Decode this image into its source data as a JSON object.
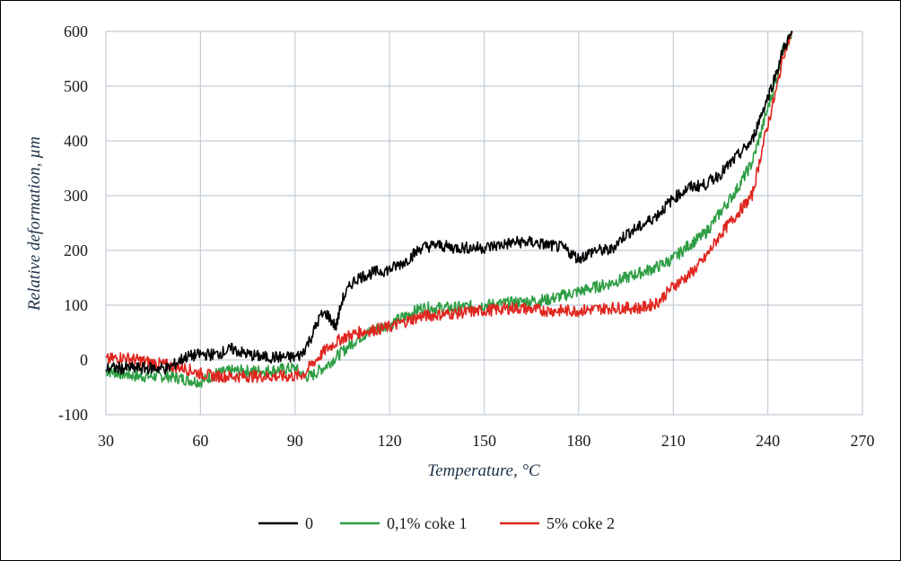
{
  "chart_data": {
    "type": "line",
    "xlabel": "Temperature, °C",
    "ylabel": "Relative deformation, µm",
    "xlim": [
      30,
      270
    ],
    "ylim": [
      -100,
      600
    ],
    "x_ticks": [
      30,
      60,
      90,
      120,
      150,
      180,
      210,
      240,
      270
    ],
    "y_ticks": [
      -100,
      0,
      100,
      200,
      300,
      400,
      500,
      600
    ],
    "grid": true,
    "legend_position": "bottom",
    "series": [
      {
        "name": "0",
        "color": "#000000",
        "x": [
          30,
          40,
          50,
          55,
          60,
          65,
          70,
          75,
          80,
          85,
          90,
          92,
          95,
          98,
          100,
          103,
          105,
          108,
          110,
          115,
          120,
          125,
          130,
          135,
          140,
          150,
          160,
          165,
          170,
          175,
          180,
          185,
          190,
          195,
          200,
          205,
          210,
          215,
          220,
          225,
          230,
          235,
          238,
          240,
          243,
          245,
          248
        ],
        "y": [
          -15,
          -15,
          -15,
          5,
          10,
          10,
          20,
          10,
          5,
          5,
          5,
          10,
          40,
          80,
          85,
          60,
          110,
          140,
          150,
          160,
          165,
          180,
          205,
          210,
          205,
          205,
          215,
          215,
          210,
          205,
          185,
          200,
          200,
          230,
          245,
          265,
          295,
          315,
          320,
          340,
          370,
          400,
          450,
          480,
          530,
          570,
          600
        ]
      },
      {
        "name": "0,1% coke 1",
        "color": "#2e9e44",
        "x": [
          30,
          40,
          50,
          55,
          60,
          65,
          70,
          80,
          90,
          93,
          95,
          100,
          105,
          110,
          115,
          120,
          125,
          130,
          140,
          150,
          160,
          170,
          180,
          190,
          200,
          205,
          210,
          215,
          220,
          225,
          230,
          235,
          238,
          240,
          243,
          245,
          248
        ],
        "y": [
          -20,
          -30,
          -30,
          -35,
          -40,
          -25,
          -20,
          -20,
          -15,
          -30,
          -30,
          -10,
          15,
          40,
          55,
          65,
          80,
          95,
          95,
          100,
          105,
          110,
          125,
          140,
          160,
          170,
          185,
          210,
          230,
          270,
          310,
          360,
          420,
          460,
          520,
          570,
          600
        ]
      },
      {
        "name": "5% coke 2",
        "color": "#e0261f",
        "x": [
          30,
          35,
          40,
          50,
          55,
          60,
          65,
          70,
          80,
          90,
          93,
          95,
          100,
          105,
          110,
          115,
          120,
          125,
          130,
          140,
          150,
          160,
          170,
          180,
          190,
          200,
          205,
          210,
          215,
          220,
          225,
          230,
          235,
          238,
          240,
          243,
          245,
          248
        ],
        "y": [
          0,
          5,
          0,
          -10,
          -15,
          -25,
          -30,
          -30,
          -30,
          -30,
          -25,
          -10,
          20,
          40,
          50,
          55,
          60,
          70,
          80,
          85,
          90,
          95,
          90,
          90,
          95,
          95,
          105,
          135,
          155,
          185,
          230,
          265,
          300,
          380,
          430,
          500,
          560,
          600
        ]
      }
    ]
  }
}
